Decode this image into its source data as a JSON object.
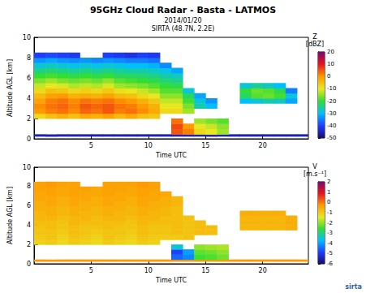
{
  "chart_data": [
    {
      "type": "heatmap",
      "title": "95GHz Cloud Radar - Basta - LATMOS",
      "subtitle": [
        "2014/01/20",
        "SIRTA (48.7N, 2.2E)"
      ],
      "x_label": "Time UTC",
      "y_label": "Altitude AGL [km]",
      "xlim": [
        0,
        24
      ],
      "xticks": [
        5,
        10,
        15,
        20
      ],
      "ylim": [
        0,
        10
      ],
      "yticks": [
        0,
        2,
        4,
        6,
        8,
        10
      ],
      "x_bins": [
        0,
        1,
        2,
        3,
        4,
        5,
        6,
        7,
        8,
        9,
        10,
        11,
        12,
        13,
        14,
        15,
        16,
        17,
        18,
        19,
        20,
        21,
        22,
        23,
        24
      ],
      "y_bins": [
        0,
        0.25,
        0.45,
        1,
        1.5,
        2,
        2.5,
        3,
        3.5,
        4,
        4.5,
        5,
        5.5,
        6,
        6.5,
        7,
        7.5,
        8,
        8.5,
        9
      ],
      "colorbar_label": "Z [dBZ]",
      "colorbar_range": [
        -50,
        20
      ],
      "colorbar_ticks": [
        20,
        10,
        0,
        -10,
        -20,
        -30,
        -40,
        -50
      ],
      "cells": [
        [
          null,
          null,
          null,
          null,
          null,
          null,
          null,
          null,
          null,
          null,
          null,
          null,
          null,
          null,
          null,
          null,
          null,
          null,
          null,
          null,
          null,
          null,
          null,
          null
        ],
        [
          -45,
          -45,
          -45,
          -45,
          -45,
          -45,
          -45,
          -45,
          -45,
          -45,
          -45,
          -45,
          -45,
          -45,
          -45,
          -45,
          -45,
          -45,
          -45,
          -45,
          -45,
          -45,
          -45,
          -45
        ],
        [
          null,
          null,
          null,
          null,
          null,
          null,
          null,
          null,
          null,
          null,
          null,
          null,
          5,
          2,
          -8,
          -10,
          -14,
          null,
          null,
          null,
          null,
          null,
          null,
          null
        ],
        [
          null,
          null,
          null,
          null,
          null,
          null,
          null,
          null,
          null,
          null,
          null,
          null,
          6,
          0,
          -10,
          -12,
          -15,
          null,
          null,
          null,
          null,
          null,
          null,
          null
        ],
        [
          null,
          null,
          null,
          null,
          null,
          null,
          null,
          null,
          null,
          null,
          null,
          null,
          3,
          null,
          -14,
          -16,
          -18,
          null,
          null,
          null,
          null,
          null,
          null,
          null
        ],
        [
          -8,
          -5,
          -3,
          -5,
          -2,
          -3,
          -1,
          -4,
          -2,
          -5,
          -6,
          null,
          null,
          null,
          null,
          null,
          null,
          null,
          null,
          null,
          null,
          null,
          null,
          null
        ],
        [
          0,
          2,
          3,
          1,
          4,
          3,
          5,
          2,
          3,
          1,
          -2,
          -8,
          -8,
          -14,
          null,
          null,
          null,
          null,
          null,
          null,
          null,
          null,
          null,
          null
        ],
        [
          1,
          3,
          4,
          2,
          5,
          4,
          5,
          3,
          2,
          0,
          -3,
          -10,
          -10,
          -16,
          -26,
          -30,
          null,
          null,
          null,
          null,
          null,
          null,
          null,
          null
        ],
        [
          -1,
          2,
          3,
          1,
          3,
          2,
          3,
          1,
          0,
          -3,
          -6,
          -12,
          -12,
          -19,
          -28,
          -33,
          null,
          null,
          -30,
          -28,
          -26,
          -27,
          -32,
          null
        ],
        [
          -4,
          -1,
          0,
          -3,
          -2,
          -3,
          -1,
          -4,
          -5,
          -8,
          -10,
          -15,
          -15,
          -22,
          -32,
          null,
          null,
          null,
          -22,
          -18,
          -17,
          -19,
          -28,
          null
        ],
        [
          -8,
          -5,
          -6,
          -8,
          -7,
          -8,
          -6,
          -9,
          -10,
          -12,
          -14,
          -18,
          -18,
          -28,
          null,
          null,
          null,
          null,
          -20,
          -17,
          -18,
          -21,
          -35,
          null
        ],
        [
          -12,
          -10,
          -11,
          -13,
          -12,
          -13,
          -11,
          -14,
          -15,
          -16,
          -18,
          -20,
          -21,
          null,
          null,
          null,
          null,
          null,
          -28,
          -25,
          -27,
          -30,
          null,
          null
        ],
        [
          -16,
          -14,
          -16,
          -17,
          -16,
          -17,
          -15,
          -18,
          -19,
          -20,
          -21,
          -23,
          -24,
          null,
          null,
          null,
          null,
          null,
          null,
          null,
          null,
          null,
          null,
          null
        ],
        [
          -20,
          -19,
          -20,
          -21,
          -20,
          -21,
          -20,
          -22,
          -22,
          -23,
          -24,
          -26,
          -27,
          null,
          null,
          null,
          null,
          null,
          null,
          null,
          null,
          null,
          null,
          null
        ],
        [
          -24,
          -23,
          -24,
          -25,
          -24,
          -25,
          -24,
          -25,
          -26,
          -26,
          -27,
          -29,
          -32,
          null,
          null,
          null,
          null,
          null,
          null,
          null,
          null,
          null,
          null,
          null
        ],
        [
          -28,
          -27,
          -28,
          -29,
          -28,
          -29,
          -28,
          -29,
          -30,
          -30,
          -31,
          -34,
          null,
          null,
          null,
          null,
          null,
          null,
          null,
          null,
          null,
          null,
          null,
          null
        ],
        [
          -33,
          -32,
          -33,
          -34,
          -33,
          -34,
          -33,
          -34,
          -35,
          -35,
          -36,
          null,
          null,
          null,
          null,
          null,
          null,
          null,
          null,
          null,
          null,
          null,
          null,
          null
        ],
        [
          -40,
          -39,
          -40,
          -41,
          null,
          null,
          -40,
          -41,
          -42,
          -40,
          -41,
          null,
          null,
          null,
          null,
          null,
          null,
          null,
          null,
          null,
          null,
          null,
          null,
          null
        ],
        [
          null,
          null,
          null,
          null,
          null,
          null,
          null,
          null,
          null,
          null,
          null,
          null,
          null,
          null,
          null,
          null,
          null,
          null,
          null,
          null,
          null,
          null,
          null,
          null
        ]
      ]
    },
    {
      "type": "heatmap",
      "x_label": "Time UTC",
      "y_label": "Altitude AGL [km]",
      "xlim": [
        0,
        24
      ],
      "xticks": [
        5,
        10,
        15,
        20
      ],
      "ylim": [
        0,
        10
      ],
      "yticks": [
        0,
        2,
        4,
        6,
        8,
        10
      ],
      "x_bins": [
        0,
        1,
        2,
        3,
        4,
        5,
        6,
        7,
        8,
        9,
        10,
        11,
        12,
        13,
        14,
        15,
        16,
        17,
        18,
        19,
        20,
        21,
        22,
        23,
        24
      ],
      "y_bins": [
        0,
        0.25,
        0.45,
        1,
        1.5,
        2,
        2.5,
        3,
        3.5,
        4,
        4.5,
        5,
        5.5,
        6,
        6.5,
        7,
        7.5,
        8,
        8.5,
        9
      ],
      "colorbar_label": "V [m.s⁻¹]",
      "colorbar_range": [
        -6,
        2
      ],
      "colorbar_ticks": [
        2,
        1,
        0,
        -1,
        -2,
        -3,
        -4,
        -5,
        -6
      ],
      "annotations": [
        "sirta"
      ],
      "cells": [
        [
          null,
          null,
          null,
          null,
          null,
          null,
          null,
          null,
          null,
          null,
          null,
          null,
          null,
          null,
          null,
          null,
          null,
          null,
          null,
          null,
          null,
          null,
          null,
          null
        ],
        [
          -0.3,
          -0.3,
          -0.3,
          -0.3,
          -0.3,
          -0.3,
          -0.3,
          -0.3,
          -0.3,
          -0.3,
          -0.3,
          -0.3,
          -0.3,
          -0.3,
          -0.3,
          -0.3,
          -0.3,
          -0.3,
          -0.3,
          -0.3,
          -0.3,
          -0.3,
          -0.3,
          -0.3
        ],
        [
          null,
          null,
          null,
          null,
          null,
          null,
          null,
          null,
          null,
          null,
          null,
          null,
          -4.5,
          -4.2,
          -2.5,
          -2.4,
          -2.2,
          null,
          null,
          null,
          null,
          null,
          null,
          null
        ],
        [
          null,
          null,
          null,
          null,
          null,
          null,
          null,
          null,
          null,
          null,
          null,
          null,
          -4.8,
          -4.0,
          -2.3,
          -2.2,
          -2.0,
          null,
          null,
          null,
          null,
          null,
          null,
          null
        ],
        [
          null,
          null,
          null,
          null,
          null,
          null,
          null,
          null,
          null,
          null,
          null,
          null,
          -3.5,
          null,
          -2.0,
          -1.9,
          -1.8,
          null,
          null,
          null,
          null,
          null,
          null,
          null
        ],
        [
          -1.1,
          -1.0,
          -1.2,
          -1.0,
          -1.1,
          -1.2,
          -1.0,
          -1.1,
          -1.2,
          -1.0,
          -1.1,
          null,
          null,
          null,
          null,
          null,
          null,
          null,
          null,
          null,
          null,
          null,
          null,
          null
        ],
        [
          -1.0,
          -0.9,
          -1.1,
          -0.9,
          -1.0,
          -1.1,
          -0.9,
          -1.0,
          -1.1,
          -0.9,
          -1.0,
          -1.0,
          -1.0,
          -0.9,
          null,
          null,
          null,
          null,
          null,
          null,
          null,
          null,
          null,
          null
        ],
        [
          -0.9,
          -0.9,
          -1.0,
          -0.8,
          -0.9,
          -1.0,
          -0.9,
          -0.9,
          -1.0,
          -0.8,
          -0.9,
          -0.9,
          -0.8,
          -0.9,
          -0.8,
          -0.8,
          null,
          null,
          null,
          null,
          null,
          null,
          null,
          null
        ],
        [
          -0.9,
          -0.8,
          -0.9,
          -0.8,
          -0.9,
          -0.9,
          -0.8,
          -0.9,
          -0.9,
          -0.8,
          -0.9,
          -0.9,
          -0.8,
          -0.9,
          -0.8,
          -0.8,
          null,
          null,
          -0.7,
          -0.7,
          -0.7,
          -0.7,
          -0.6,
          null
        ],
        [
          -0.8,
          -0.8,
          -0.9,
          -0.7,
          -0.8,
          -0.8,
          -0.8,
          -0.8,
          -0.9,
          -0.7,
          -0.8,
          -0.8,
          -0.8,
          -0.9,
          -0.8,
          null,
          null,
          null,
          -0.7,
          -0.7,
          -0.7,
          -0.7,
          -0.6,
          null
        ],
        [
          -0.7,
          -0.7,
          -0.8,
          -0.7,
          -0.7,
          -0.8,
          -0.7,
          -0.7,
          -0.8,
          -0.7,
          -0.7,
          -0.8,
          -0.8,
          -0.9,
          null,
          null,
          null,
          null,
          -0.7,
          -0.7,
          -0.7,
          -0.7,
          -0.6,
          null
        ],
        [
          -0.7,
          -0.6,
          -0.7,
          -0.6,
          -0.7,
          -0.7,
          -0.6,
          -0.7,
          -0.7,
          -0.6,
          -0.7,
          -0.7,
          -0.8,
          null,
          null,
          null,
          null,
          null,
          -0.6,
          -0.6,
          -0.6,
          -0.6,
          null,
          null
        ],
        [
          -0.6,
          -0.6,
          -0.7,
          -0.6,
          -0.6,
          -0.7,
          -0.6,
          -0.6,
          -0.7,
          -0.6,
          -0.6,
          -0.7,
          -0.8,
          null,
          null,
          null,
          null,
          null,
          null,
          null,
          null,
          null,
          null,
          null
        ],
        [
          -0.6,
          -0.5,
          -0.6,
          -0.5,
          -0.6,
          -0.6,
          -0.5,
          -0.6,
          -0.6,
          -0.5,
          -0.6,
          -0.6,
          -0.7,
          null,
          null,
          null,
          null,
          null,
          null,
          null,
          null,
          null,
          null,
          null
        ],
        [
          -0.5,
          -0.5,
          -0.6,
          -0.5,
          -0.5,
          -0.6,
          -0.5,
          -0.5,
          -0.6,
          -0.5,
          -0.5,
          -0.6,
          -0.7,
          null,
          null,
          null,
          null,
          null,
          null,
          null,
          null,
          null,
          null,
          null
        ],
        [
          -0.5,
          -0.4,
          -0.5,
          -0.4,
          -0.5,
          -0.5,
          -0.4,
          -0.5,
          -0.5,
          -0.4,
          -0.5,
          -0.5,
          null,
          null,
          null,
          null,
          null,
          null,
          null,
          null,
          null,
          null,
          null,
          null
        ],
        [
          -0.4,
          -0.4,
          -0.5,
          -0.4,
          -0.4,
          -0.5,
          -0.4,
          -0.4,
          -0.5,
          -0.4,
          -0.4,
          null,
          null,
          null,
          null,
          null,
          null,
          null,
          null,
          null,
          null,
          null,
          null,
          null
        ],
        [
          -0.4,
          -0.3,
          -0.4,
          -0.4,
          null,
          null,
          -0.4,
          -0.4,
          -0.4,
          -0.3,
          -0.4,
          null,
          null,
          null,
          null,
          null,
          null,
          null,
          null,
          null,
          null,
          null,
          null,
          null
        ],
        [
          null,
          null,
          null,
          null,
          null,
          null,
          null,
          null,
          null,
          null,
          null,
          null,
          null,
          null,
          null,
          null,
          null,
          null,
          null,
          null,
          null,
          null,
          null,
          null
        ]
      ]
    }
  ]
}
